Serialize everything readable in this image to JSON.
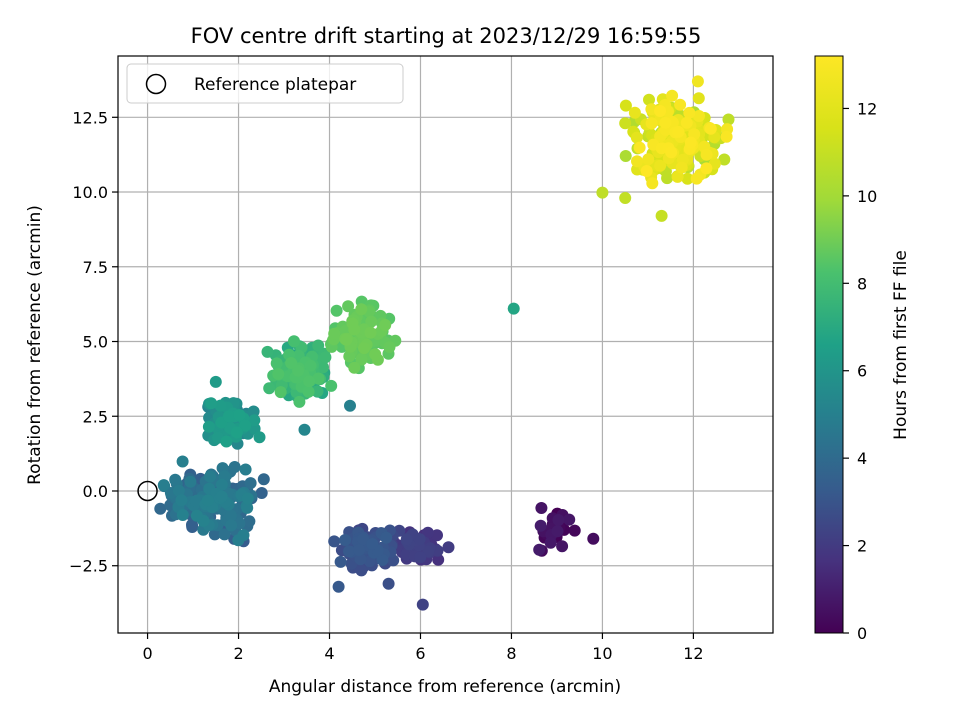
{
  "chart_data": {
    "type": "scatter",
    "title": "FOV centre drift starting at 2023/12/29 16:59:55",
    "xlabel": "Angular distance from reference (arcmin)",
    "ylabel": "Rotation from reference (arcmin)",
    "xlim": [
      -0.65,
      13.75
    ],
    "ylim": [
      -4.75,
      14.55
    ],
    "x_ticks": [
      0,
      2,
      4,
      6,
      8,
      10,
      12
    ],
    "y_ticks": [
      -2.5,
      0.0,
      2.5,
      5.0,
      7.5,
      10.0,
      12.5
    ],
    "x_tick_labels": [
      "0",
      "2",
      "4",
      "6",
      "8",
      "10",
      "12"
    ],
    "y_tick_labels": [
      "−2.5",
      "0.0",
      "2.5",
      "5.0",
      "7.5",
      "10.0",
      "12.5"
    ],
    "grid": true,
    "legend": {
      "position": "top-left",
      "entries": [
        "Reference platepar"
      ]
    },
    "reference_point": {
      "x": 0,
      "y": 0
    },
    "colorbar": {
      "label": "Hours from first FF file",
      "range": [
        0,
        13.2
      ],
      "ticks": [
        0,
        2,
        4,
        6,
        8,
        10,
        12
      ],
      "tick_labels": [
        "0",
        "2",
        "4",
        "6",
        "8",
        "10",
        "12"
      ],
      "colormap": "viridis"
    },
    "clusters": [
      {
        "t_range": [
          0.0,
          0.9
        ],
        "x_range": [
          8.0,
          9.9
        ],
        "y_range": [
          -2.4,
          -0.3
        ],
        "count": 28
      },
      {
        "t_range": [
          1.4,
          2.4
        ],
        "x_range": [
          5.1,
          6.7
        ],
        "y_range": [
          -2.5,
          -1.2
        ],
        "count": 70
      },
      {
        "t_range": [
          2.4,
          3.3
        ],
        "x_range": [
          3.9,
          5.6
        ],
        "y_range": [
          -2.7,
          -1.0
        ],
        "count": 90
      },
      {
        "t_range": [
          3.3,
          5.1
        ],
        "x_range": [
          0.1,
          2.8
        ],
        "y_range": [
          -1.9,
          1.2
        ],
        "count": 190
      },
      {
        "t_range": [
          5.1,
          6.6
        ],
        "x_range": [
          0.9,
          2.6
        ],
        "y_range": [
          1.2,
          3.2
        ],
        "count": 90
      },
      {
        "t_range": [
          6.6,
          8.4
        ],
        "x_range": [
          2.5,
          4.2
        ],
        "y_range": [
          2.7,
          5.2
        ],
        "count": 170
      },
      {
        "t_range": [
          8.4,
          9.0
        ],
        "x_range": [
          3.8,
          5.6
        ],
        "y_range": [
          3.9,
          6.7
        ],
        "count": 110
      },
      {
        "t_range": [
          10.2,
          13.2
        ],
        "x_range": [
          10.3,
          13.0
        ],
        "y_range": [
          9.8,
          13.6
        ],
        "count": 240
      }
    ],
    "outliers": [
      {
        "x": 8.05,
        "y": 6.1,
        "t": 6.8
      },
      {
        "x": 1.5,
        "y": 3.65,
        "t": 6.3
      },
      {
        "x": 4.45,
        "y": 2.85,
        "t": 5.0
      },
      {
        "x": 3.45,
        "y": 2.05,
        "t": 5.3
      },
      {
        "x": 4.2,
        "y": -3.2,
        "t": 3.2
      },
      {
        "x": 6.05,
        "y": -3.8,
        "t": 2.3
      },
      {
        "x": 5.3,
        "y": -3.1,
        "t": 2.8
      },
      {
        "x": 9.8,
        "y": -1.6,
        "t": 0.4
      },
      {
        "x": 10.0,
        "y": 9.98,
        "t": 10.8
      },
      {
        "x": 11.3,
        "y": 9.2,
        "t": 11.0
      },
      {
        "x": 10.5,
        "y": 9.8,
        "t": 10.9
      },
      {
        "x": 10.5,
        "y": 12.3,
        "t": 11.2
      },
      {
        "x": 12.1,
        "y": 13.7,
        "t": 12.6
      },
      {
        "x": 1.4,
        "y": 0.55,
        "t": 4.5
      },
      {
        "x": 1.7,
        "y": 0.25,
        "t": 4.6
      }
    ]
  }
}
